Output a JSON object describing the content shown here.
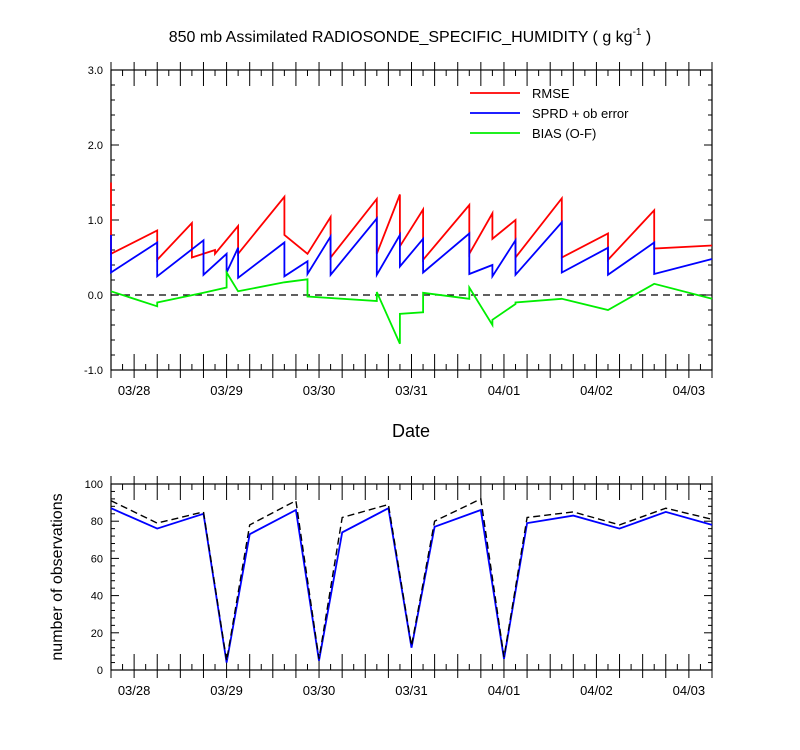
{
  "chart_data": [
    {
      "type": "line",
      "title_main": "850 mb Assimilated RADIOSONDE_SPECIFIC_HUMIDITY ( g kg",
      "title_sup": "-1",
      "title_end": " )",
      "xlabel": "Date",
      "ylabel": "",
      "xlim": [
        "03/27 12Z",
        "04/03 00Z"
      ],
      "ylim": [
        -1.0,
        3.0
      ],
      "yticks": [
        -1.0,
        0.0,
        1.0,
        2.0,
        3.0
      ],
      "ytick_labels": [
        "-1.0",
        "0.0",
        "1.0",
        "2.0",
        "3.0"
      ],
      "xtick_labels": [
        "03/28",
        "03/29",
        "03/30",
        "03/31",
        "04/01",
        "04/02",
        "04/03"
      ],
      "zero_line": {
        "value": 0.0,
        "style": "dashed"
      },
      "legend": {
        "position": "top-right"
      },
      "series": [
        {
          "name": "RMSE",
          "color": "#ff0000",
          "x_hours": [
            0,
            0,
            24,
            24,
            42,
            42,
            54,
            54,
            66,
            66,
            90,
            90,
            102,
            102,
            114,
            114,
            138,
            138,
            150,
            150,
            162,
            162,
            186,
            186,
            198,
            198,
            210,
            210,
            234,
            234,
            258,
            258,
            282,
            282,
            312
          ],
          "values": [
            1.5,
            0.55,
            0.86,
            0.47,
            0.96,
            0.5,
            0.6,
            0.55,
            0.92,
            0.55,
            1.31,
            0.8,
            0.55,
            0.55,
            1.04,
            0.5,
            1.28,
            0.55,
            1.34,
            0.65,
            1.14,
            0.47,
            1.2,
            0.55,
            1.09,
            0.75,
            1.0,
            0.5,
            1.29,
            0.5,
            0.82,
            0.47,
            1.13,
            0.62,
            0.66
          ]
        },
        {
          "name": "SPRD + ob error",
          "color": "#0000ff",
          "x_hours": [
            0,
            0,
            24,
            24,
            48,
            48,
            60,
            60,
            66,
            66,
            90,
            90,
            102,
            102,
            114,
            114,
            138,
            138,
            150,
            150,
            162,
            162,
            186,
            186,
            198,
            198,
            210,
            210,
            234,
            234,
            258,
            258,
            282,
            282,
            312
          ],
          "values": [
            0.8,
            0.3,
            0.7,
            0.25,
            0.73,
            0.27,
            0.55,
            0.3,
            0.63,
            0.23,
            0.7,
            0.25,
            0.45,
            0.28,
            0.78,
            0.27,
            1.02,
            0.27,
            0.8,
            0.38,
            0.75,
            0.3,
            0.82,
            0.28,
            0.4,
            0.25,
            0.73,
            0.27,
            0.97,
            0.3,
            0.63,
            0.27,
            0.7,
            0.28,
            0.48
          ]
        },
        {
          "name": "BIAS (O-F)",
          "color": "#00ee00",
          "x_hours": [
            0,
            24,
            24,
            48,
            60,
            60,
            66,
            90,
            102,
            102,
            138,
            138,
            150,
            150,
            162,
            162,
            186,
            186,
            198,
            198,
            210,
            210,
            234,
            258,
            282,
            312
          ],
          "values": [
            0.05,
            -0.15,
            -0.1,
            0.03,
            0.1,
            0.3,
            0.05,
            0.17,
            0.21,
            -0.02,
            -0.08,
            0.04,
            -0.65,
            -0.25,
            -0.23,
            0.03,
            -0.05,
            0.1,
            -0.4,
            -0.33,
            -0.12,
            -0.1,
            -0.05,
            -0.2,
            0.15,
            -0.05
          ]
        }
      ]
    },
    {
      "type": "line",
      "title": "",
      "xlabel": "",
      "ylabel": "number of observations",
      "xlim": [
        "03/27 12Z",
        "04/03 00Z"
      ],
      "ylim": [
        0,
        100
      ],
      "yticks": [
        0,
        20,
        40,
        60,
        80,
        100
      ],
      "ytick_labels": [
        "0",
        "20",
        "40",
        "60",
        "80",
        "100"
      ],
      "xtick_labels": [
        "03/28",
        "03/29",
        "03/30",
        "03/31",
        "04/01",
        "04/02",
        "04/03"
      ],
      "series": [
        {
          "name": "",
          "color": "#0000ff",
          "style": "solid",
          "x_hours": [
            0,
            24,
            48,
            60,
            72,
            96,
            108,
            120,
            144,
            156,
            168,
            192,
            204,
            216,
            240,
            264,
            288,
            312
          ],
          "values": [
            87,
            76,
            84,
            4,
            73,
            86,
            5,
            74,
            87,
            12,
            77,
            86,
            6,
            79,
            83,
            76,
            85,
            78
          ]
        },
        {
          "name": "",
          "color": "#000000",
          "style": "dashed",
          "x_hours": [
            0,
            24,
            48,
            60,
            72,
            96,
            108,
            120,
            144,
            156,
            168,
            192,
            204,
            216,
            240,
            264,
            288,
            312
          ],
          "values": [
            91,
            79,
            85,
            5,
            78,
            91,
            6,
            82,
            89,
            13,
            80,
            92,
            7,
            82,
            85,
            78,
            87,
            81
          ]
        }
      ]
    }
  ]
}
